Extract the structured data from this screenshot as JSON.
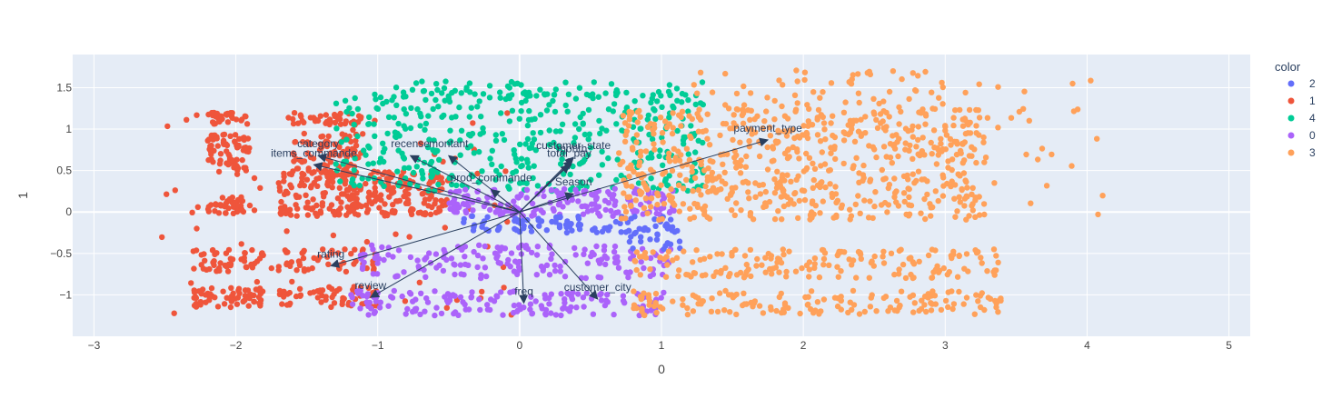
{
  "chart_data": {
    "type": "scatter",
    "title": "",
    "xlabel": "0",
    "ylabel": "1",
    "xlim": [
      -3.15,
      5.15
    ],
    "ylim": [
      -1.5,
      1.9
    ],
    "grid": true,
    "plot_background": "#E5ECF6",
    "x_ticks": [
      -3,
      -2,
      -1,
      0,
      1,
      2,
      3,
      4,
      5
    ],
    "x_tick_labels": [
      "−3",
      "−2",
      "−1",
      "0",
      "1",
      "2",
      "3",
      "4",
      "5"
    ],
    "y_ticks": [
      -1,
      -0.5,
      0,
      0.5,
      1,
      1.5
    ],
    "y_tick_labels": [
      "−1",
      "−0.5",
      "0",
      "0.5",
      "1",
      "1.5"
    ],
    "legend": {
      "title": "color",
      "position": "right",
      "entries": [
        {
          "label": "2",
          "color": "#636EFA"
        },
        {
          "label": "1",
          "color": "#EF553B"
        },
        {
          "label": "4",
          "color": "#00CC96"
        },
        {
          "label": "0",
          "color": "#AB63FA"
        },
        {
          "label": "3",
          "color": "#FFA15A"
        }
      ]
    },
    "clusters": [
      {
        "name": "1",
        "color": "#EF553B",
        "regions": [
          {
            "x": [
              -2.2,
              -1.9
            ],
            "y_bands": [
              [
                1.05,
                1.2
              ],
              [
                0.72,
                0.95
              ],
              [
                0.45,
                0.72
              ],
              [
                -0.02,
                0.18
              ]
            ],
            "n": 140
          },
          {
            "x": [
              -1.6,
              -1.1
            ],
            "y_bands": [
              [
                1.05,
                1.2
              ],
              [
                0.72,
                0.95
              ],
              [
                0.45,
                0.72
              ]
            ],
            "n": 120
          },
          {
            "x": [
              -1.7,
              -0.5
            ],
            "y_bands": [
              [
                -0.05,
                0.5
              ]
            ],
            "n": 260
          },
          {
            "x": [
              -2.3,
              -1.8
            ],
            "y_bands": [
              [
                -0.72,
                -0.45
              ],
              [
                -1.15,
                -0.9
              ]
            ],
            "n": 110
          },
          {
            "x": [
              -1.7,
              -1.0
            ],
            "y_bands": [
              [
                -0.72,
                -0.45
              ],
              [
                -1.15,
                -0.9
              ]
            ],
            "n": 110
          },
          {
            "x": [
              -2.6,
              0.0
            ],
            "y_bands": [
              [
                -1.25,
                1.22
              ]
            ],
            "n": 70
          }
        ]
      },
      {
        "name": "4",
        "color": "#00CC96",
        "regions": [
          {
            "x": [
              -1.3,
              1.3
            ],
            "y_bands": [
              [
                0.25,
                1.45
              ]
            ],
            "n": 420
          },
          {
            "x": [
              -0.9,
              1.4
            ],
            "y_bands": [
              [
                1.4,
                1.58
              ]
            ],
            "n": 50
          }
        ]
      },
      {
        "name": "0",
        "color": "#AB63FA",
        "regions": [
          {
            "x": [
              -0.5,
              1.1
            ],
            "y_bands": [
              [
                -0.05,
                0.28
              ]
            ],
            "n": 170
          },
          {
            "x": [
              -1.2,
              1.1
            ],
            "y_bands": [
              [
                -0.8,
                -0.4
              ],
              [
                -1.25,
                -0.95
              ]
            ],
            "n": 320
          }
        ]
      },
      {
        "name": "2",
        "color": "#636EFA",
        "regions": [
          {
            "x": [
              -0.4,
              1.1
            ],
            "y_bands": [
              [
                -0.25,
                -0.05
              ]
            ],
            "n": 90
          },
          {
            "x": [
              0.7,
              1.15
            ],
            "y_bands": [
              [
                -0.45,
                -0.2
              ]
            ],
            "n": 20
          }
        ]
      },
      {
        "name": "3",
        "color": "#FFA15A",
        "regions": [
          {
            "x": [
              0.7,
              3.3
            ],
            "y_bands": [
              [
                -0.1,
                1.25
              ]
            ],
            "n": 640
          },
          {
            "x": [
              0.8,
              3.4
            ],
            "y_bands": [
              [
                -0.8,
                -0.45
              ],
              [
                -1.25,
                -0.95
              ]
            ],
            "n": 330
          },
          {
            "x": [
              1.2,
              3.0
            ],
            "y_bands": [
              [
                1.2,
                1.72
              ]
            ],
            "n": 60
          },
          {
            "x": [
              3.0,
              4.2
            ],
            "y_bands": [
              [
                -0.1,
                1.6
              ]
            ],
            "n": 30
          }
        ]
      }
    ],
    "loadings": [
      {
        "name": "category",
        "x": -1.42,
        "y": 0.68
      },
      {
        "name": "items_commande",
        "x": -1.45,
        "y": 0.57
      },
      {
        "name": "recense",
        "x": -0.77,
        "y": 0.68
      },
      {
        "name": "montant",
        "x": -0.5,
        "y": 0.68
      },
      {
        "name": "prod_commande",
        "x": -0.2,
        "y": 0.27
      },
      {
        "name": "customer_state",
        "x": 0.38,
        "y": 0.66
      },
      {
        "name": "month",
        "x": 0.37,
        "y": 0.62
      },
      {
        "name": "total_pay",
        "x": 0.35,
        "y": 0.57
      },
      {
        "name": "Season",
        "x": 0.38,
        "y": 0.22
      },
      {
        "name": "payment_type",
        "x": 1.75,
        "y": 0.87
      },
      {
        "name": "rating",
        "x": -1.33,
        "y": -0.65
      },
      {
        "name": "review",
        "x": -1.05,
        "y": -1.03
      },
      {
        "name": "freq",
        "x": 0.03,
        "y": -1.1
      },
      {
        "name": "customer_city",
        "x": 0.55,
        "y": -1.05
      }
    ]
  }
}
